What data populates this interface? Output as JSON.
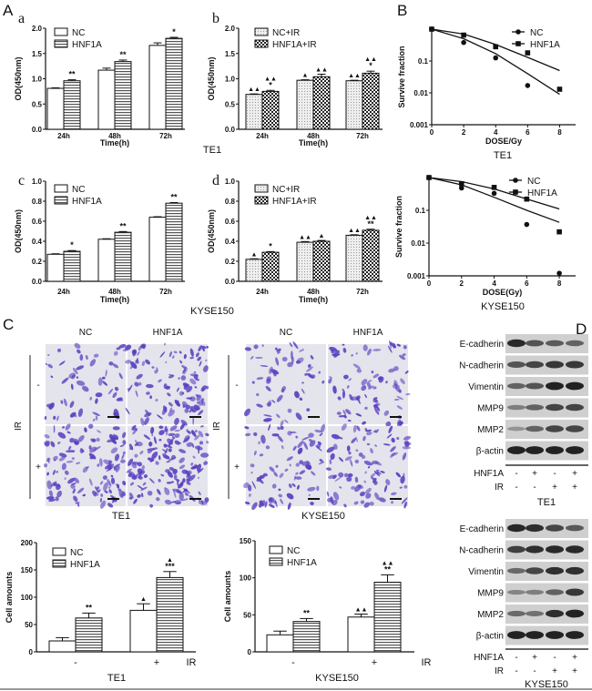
{
  "panels": {
    "A": "A",
    "a": "a",
    "b": "b",
    "c": "c",
    "d": "d",
    "B": "B",
    "C": "C",
    "D": "D"
  },
  "cell_lines": {
    "te1": "TE1",
    "kyse": "KYSE150"
  },
  "colors": {
    "micrograph_stain": "#5a3fc0",
    "micrograph_bg": "#e4e4ec",
    "bar_outline": "#111111"
  },
  "chart_data": [
    {
      "id": "Aa",
      "type": "bar",
      "ylabel": "OD(450nm)",
      "xlabel": "Time(h)",
      "categories": [
        "24h",
        "48h",
        "72h"
      ],
      "ylim": [
        0,
        2.0
      ],
      "yticks": [
        "0.0",
        "0.5",
        "1.0",
        "1.5",
        "2.0"
      ],
      "ytick_values": [
        0,
        0.5,
        1,
        1.5,
        2
      ],
      "legend": "top-left",
      "series": [
        {
          "name": "NC",
          "pattern": "white",
          "values": [
            0.81,
            1.17,
            1.66
          ],
          "errors": [
            0.01,
            0.04,
            0.05
          ],
          "annotations": [
            "",
            "",
            ""
          ]
        },
        {
          "name": "HNF1A",
          "pattern": "horizontal-stripes",
          "values": [
            0.96,
            1.34,
            1.8
          ],
          "errors": [
            0.02,
            0.03,
            0.02
          ],
          "annotations": [
            "**",
            "**",
            "*"
          ]
        }
      ]
    },
    {
      "id": "Ab",
      "type": "bar",
      "ylabel": "OD(450nm)",
      "xlabel": "Time(h)",
      "categories": [
        "24h",
        "48h",
        "72h"
      ],
      "ylim": [
        0,
        2.0
      ],
      "yticks": [
        "0.0",
        "0.5",
        "1.0",
        "1.5",
        "2.0"
      ],
      "ytick_values": [
        0,
        0.5,
        1,
        1.5,
        2
      ],
      "legend": "top-left",
      "series": [
        {
          "name": "NC+IR",
          "pattern": "dots",
          "values": [
            0.69,
            0.97,
            0.96
          ],
          "errors": [
            0.01,
            0.01,
            0.01
          ],
          "annotations": [
            "▲▲",
            "▲",
            "▲▲"
          ]
        },
        {
          "name": "HNF1A+IR",
          "pattern": "checker",
          "values": [
            0.75,
            1.04,
            1.11
          ],
          "errors": [
            0.02,
            0.05,
            0.04
          ],
          "annotations": [
            "▲▲|*",
            "▲▲",
            "▲▲|*"
          ]
        }
      ]
    },
    {
      "id": "Ac",
      "type": "bar",
      "ylabel": "OD(450nm)",
      "xlabel": "Time(h)",
      "categories": [
        "24h",
        "48h",
        "72h"
      ],
      "ylim": [
        0,
        1.0
      ],
      "yticks": [
        "0.0",
        "0.2",
        "0.4",
        "0.6",
        "0.8",
        "1.0"
      ],
      "ytick_values": [
        0,
        0.2,
        0.4,
        0.6,
        0.8,
        1.0
      ],
      "legend": "top-left",
      "series": [
        {
          "name": "NC",
          "pattern": "white",
          "values": [
            0.27,
            0.42,
            0.64
          ],
          "errors": [
            0.005,
            0.005,
            0.005
          ],
          "annotations": [
            "",
            "",
            ""
          ]
        },
        {
          "name": "HNF1A",
          "pattern": "horizontal-stripes",
          "values": [
            0.3,
            0.49,
            0.78
          ],
          "errors": [
            0.007,
            0.007,
            0.007
          ],
          "annotations": [
            "*",
            "**",
            "**"
          ]
        }
      ]
    },
    {
      "id": "Ad",
      "type": "bar",
      "ylabel": "OD(450nm)",
      "xlabel": "Time(h)",
      "categories": [
        "24h",
        "48h",
        "72h"
      ],
      "ylim": [
        0,
        1.0
      ],
      "yticks": [
        "0.0",
        "0.2",
        "0.4",
        "0.6",
        "0.8",
        "1.0"
      ],
      "ytick_values": [
        0,
        0.2,
        0.4,
        0.6,
        0.8,
        1.0
      ],
      "legend": "top-left",
      "series": [
        {
          "name": "NC+IR",
          "pattern": "dots",
          "values": [
            0.22,
            0.39,
            0.46
          ],
          "errors": [
            0.005,
            0.007,
            0.005
          ],
          "annotations": [
            "▲",
            "▲▲",
            "▲▲"
          ]
        },
        {
          "name": "HNF1A+IR",
          "pattern": "checker",
          "values": [
            0.29,
            0.4,
            0.51
          ],
          "errors": [
            0.007,
            0.008,
            0.01
          ],
          "annotations": [
            "*",
            "▲",
            "▲▲|**"
          ]
        }
      ]
    },
    {
      "id": "B1",
      "type": "scatter",
      "ylabel": "Survive fraction",
      "xlabel": "DOSE/Gy",
      "yscale": "log",
      "ylim": [
        0.001,
        1
      ],
      "yticks": [
        "0.001",
        "0.01",
        "0.1"
      ],
      "ytick_values": [
        0.001,
        0.01,
        0.1
      ],
      "xlim": [
        0,
        9
      ],
      "xticks": [
        "0",
        "2",
        "4",
        "6",
        "8"
      ],
      "xtick_values": [
        0,
        2,
        4,
        6,
        8
      ],
      "legend": "top-right",
      "series": [
        {
          "name": "NC",
          "marker": "circle",
          "x": [
            0,
            2,
            4,
            6
          ],
          "y": [
            1,
            0.38,
            0.125,
            0.017
          ],
          "fit_x": [
            0,
            2,
            4,
            6,
            8
          ],
          "fit_y": [
            1,
            0.5,
            0.17,
            0.04,
            0.009
          ]
        },
        {
          "name": "HNF1A",
          "marker": "square",
          "x": [
            0,
            2,
            4,
            6,
            8
          ],
          "y": [
            1,
            0.65,
            0.28,
            0.18,
            0.013
          ],
          "fit_x": [
            0,
            2,
            4,
            6,
            8
          ],
          "fit_y": [
            1,
            0.7,
            0.33,
            0.13,
            0.05
          ]
        }
      ]
    },
    {
      "id": "B2",
      "type": "scatter",
      "ylabel": "Survive fraction",
      "xlabel": "DOSE(Gy)",
      "yscale": "log",
      "ylim": [
        0.001,
        1
      ],
      "yticks": [
        "0.001",
        "0.01",
        "0.1"
      ],
      "ytick_values": [
        0.001,
        0.01,
        0.1
      ],
      "xlim": [
        0,
        9
      ],
      "xticks": [
        "0",
        "2",
        "4",
        "6",
        "8"
      ],
      "xtick_values": [
        0,
        2,
        4,
        6,
        8
      ],
      "legend": "top-right",
      "series": [
        {
          "name": "NC",
          "marker": "circle",
          "x": [
            0,
            2,
            4,
            6,
            8
          ],
          "y": [
            1,
            0.48,
            0.33,
            0.037,
            0.0012
          ],
          "fit_x": [
            0,
            2,
            4,
            6,
            8
          ],
          "fit_y": [
            1,
            0.6,
            0.25,
            0.1,
            0.043
          ]
        },
        {
          "name": "HNF1A",
          "marker": "square",
          "x": [
            0,
            2,
            4,
            6,
            8
          ],
          "y": [
            1,
            0.65,
            0.5,
            0.22,
            0.022
          ],
          "fit_x": [
            0,
            2,
            4,
            6,
            8
          ],
          "fit_y": [
            1,
            0.75,
            0.45,
            0.22,
            0.11
          ]
        }
      ]
    },
    {
      "id": "C1",
      "type": "bar",
      "ylabel": "Cell amounts",
      "xlabel": "IR",
      "categories": [
        "-",
        "+"
      ],
      "ylim": [
        0,
        200
      ],
      "yticks": [
        "0",
        "50",
        "100",
        "150",
        "200"
      ],
      "ytick_values": [
        0,
        50,
        100,
        150,
        200
      ],
      "legend": "top-left",
      "series": [
        {
          "name": "NC",
          "pattern": "white",
          "values": [
            20,
            76
          ],
          "errors": [
            6,
            12
          ],
          "annotations": [
            "",
            "▲"
          ]
        },
        {
          "name": "HNF1A",
          "pattern": "horizontal-stripes",
          "values": [
            62,
            136
          ],
          "errors": [
            9,
            11
          ],
          "annotations": [
            "**",
            "▲|***"
          ]
        }
      ]
    },
    {
      "id": "C2",
      "type": "bar",
      "ylabel": "Cell amounts",
      "xlabel": "IR",
      "categories": [
        "-",
        "+"
      ],
      "ylim": [
        0,
        150
      ],
      "yticks": [
        "0",
        "50",
        "100",
        "150"
      ],
      "ytick_values": [
        0,
        50,
        100,
        150
      ],
      "legend": "top-left",
      "series": [
        {
          "name": "NC",
          "pattern": "white",
          "values": [
            23,
            47
          ],
          "errors": [
            5,
            4
          ],
          "annotations": [
            "",
            "▲▲"
          ]
        },
        {
          "name": "HNF1A",
          "pattern": "horizontal-stripes",
          "values": [
            41,
            94
          ],
          "errors": [
            4,
            10
          ],
          "annotations": [
            "**",
            "▲▲|**"
          ]
        }
      ]
    }
  ],
  "invasion": {
    "columns": [
      "NC",
      "HNF1A"
    ],
    "row_axis": "IR",
    "rows": [
      "-",
      "+"
    ],
    "te1_density": [
      [
        0.35,
        0.7
      ],
      [
        0.8,
        1.0
      ]
    ],
    "kyse_density": [
      [
        0.35,
        0.5
      ],
      [
        0.55,
        0.6
      ]
    ]
  },
  "blots": {
    "proteins": [
      "E-cadherin",
      "N-cadherin",
      "Vimentin",
      "MMP9",
      "MMP2",
      "β-actin"
    ],
    "conditions": [
      {
        "label": "HNF1A",
        "signs": [
          "-",
          "+",
          "-",
          "+"
        ]
      },
      {
        "label": "IR",
        "signs": [
          "-",
          "-",
          "+",
          "+"
        ]
      }
    ],
    "te1_intensity": [
      [
        0.9,
        0.6,
        0.55,
        0.5
      ],
      [
        0.6,
        0.7,
        0.8,
        0.8
      ],
      [
        0.5,
        0.6,
        0.95,
        0.95
      ],
      [
        0.3,
        0.5,
        0.7,
        0.7
      ],
      [
        0.15,
        0.5,
        0.7,
        0.7
      ],
      [
        0.95,
        0.95,
        0.95,
        0.95
      ]
    ],
    "kyse_intensity": [
      [
        0.9,
        0.85,
        0.7,
        0.55
      ],
      [
        0.75,
        0.85,
        0.9,
        0.9
      ],
      [
        0.45,
        0.7,
        0.85,
        0.85
      ],
      [
        0.25,
        0.3,
        0.5,
        0.8
      ],
      [
        0.45,
        0.4,
        0.85,
        0.95
      ],
      [
        0.95,
        0.95,
        0.95,
        0.95
      ]
    ]
  }
}
